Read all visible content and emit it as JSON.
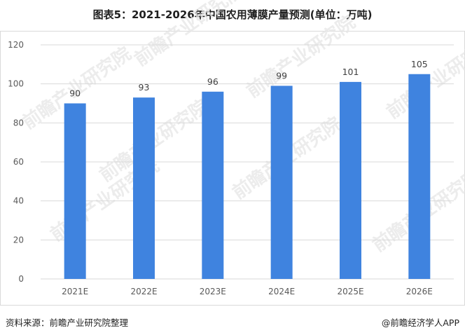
{
  "title": "图表5：2021-2026年中国农用薄膜产量预测(单位：万吨)",
  "watermark": "前瞻产业研究院",
  "footer": {
    "source": "资料来源：前瞻产业研究院整理",
    "credit": "@前瞻经济学人APP"
  },
  "colors": {
    "bar": "#3f83df"
  },
  "chart_data": {
    "type": "bar",
    "categories": [
      "2021E",
      "2022E",
      "2023E",
      "2024E",
      "2025E",
      "2026E"
    ],
    "values": [
      90,
      93,
      96,
      99,
      101,
      105
    ],
    "ylim": [
      0,
      120
    ],
    "yticks": [
      0,
      20,
      40,
      60,
      80,
      100,
      120
    ],
    "grid": true,
    "legend": "none",
    "data_labels": true
  }
}
